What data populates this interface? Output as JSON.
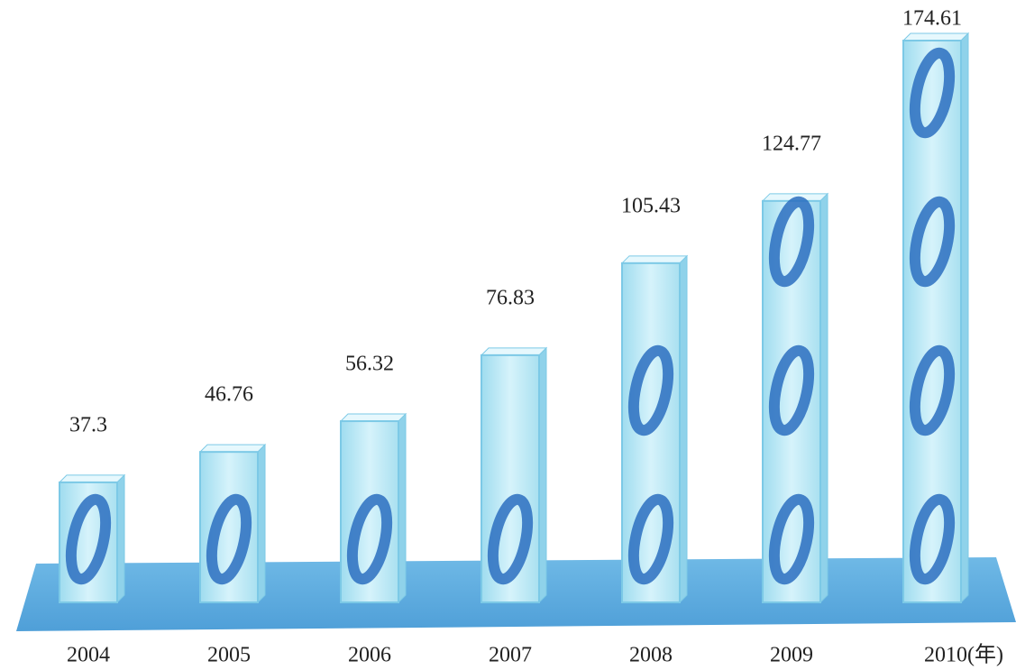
{
  "chart_data": {
    "type": "bar",
    "categories": [
      "2004",
      "2005",
      "2006",
      "2007",
      "2008",
      "2009",
      "2010(年)"
    ],
    "values": [
      37.3,
      46.76,
      56.32,
      76.83,
      105.43,
      124.77,
      174.61
    ],
    "color": "#bfeaf5"
  }
}
